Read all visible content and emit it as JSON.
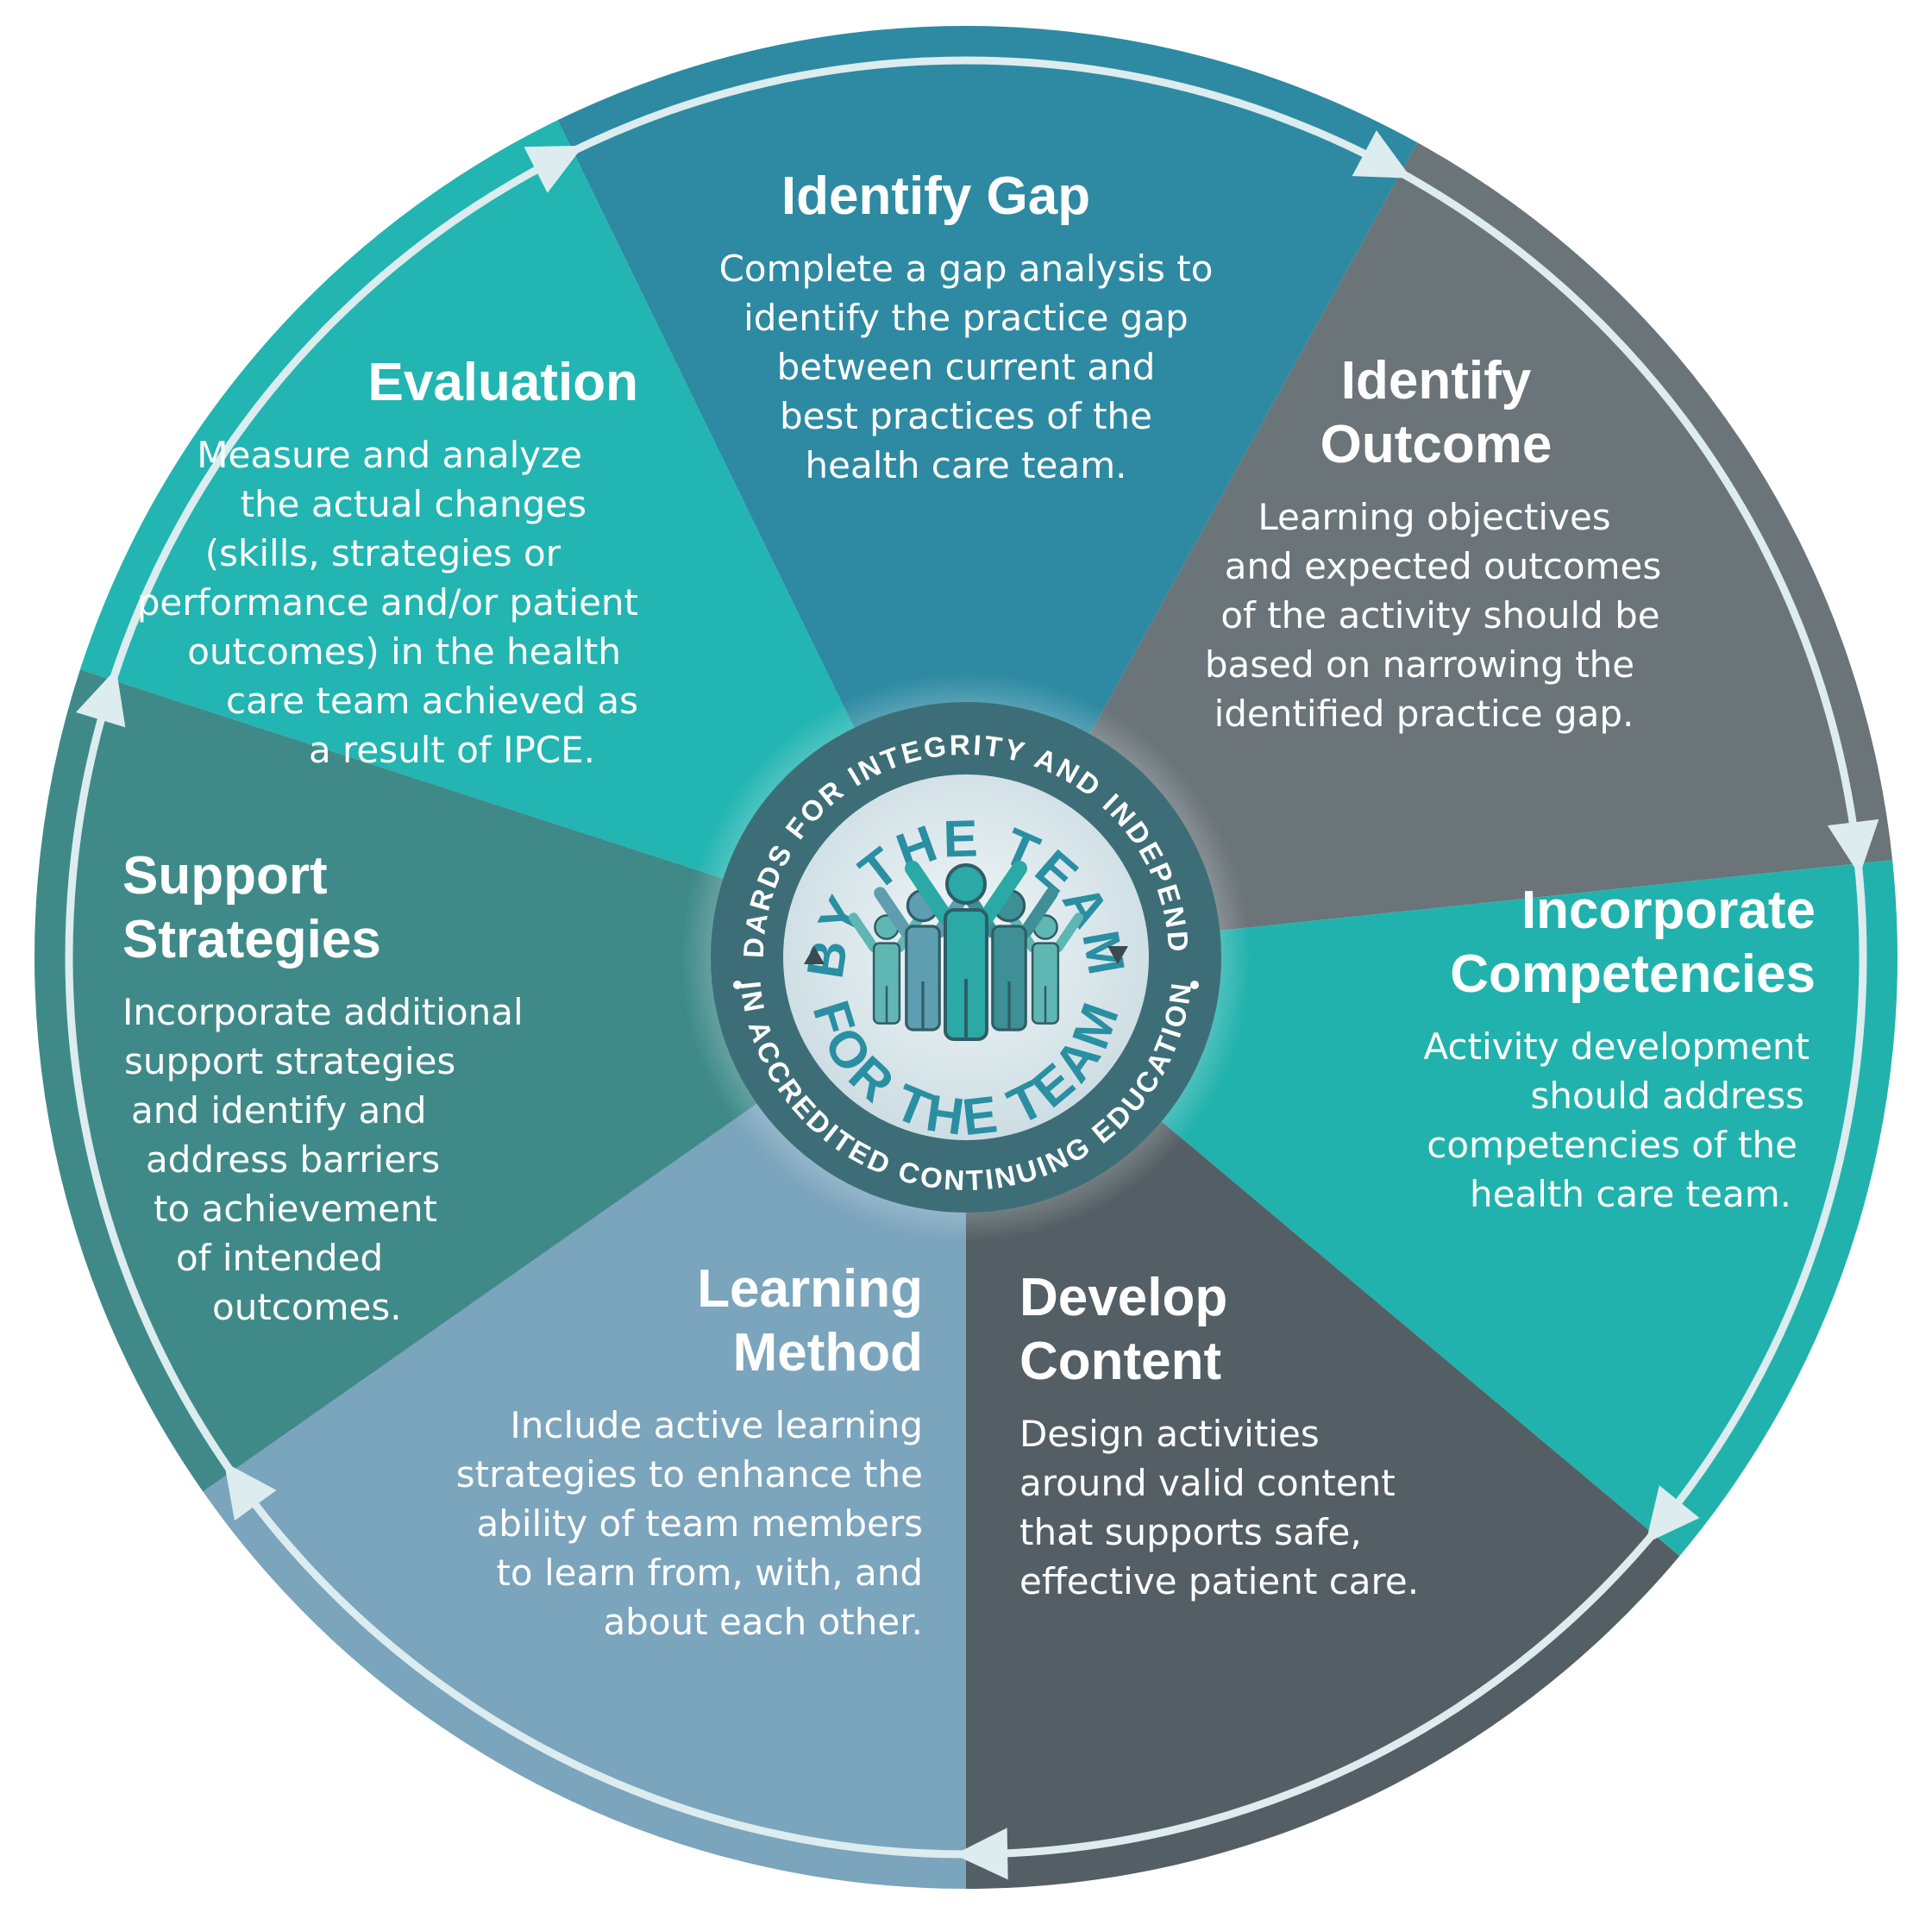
{
  "center_badge": {
    "outer_ring_top": "STANDARDS FOR INTEGRITY AND INDEPENDENCE",
    "outer_ring_bottom": "IN ACCREDITED CONTINUING EDUCATION",
    "inner_top": "BY THE TEAM",
    "inner_bottom": "FOR THE TEAM",
    "colors": {
      "ring": "#3d6e78",
      "disc": "#d9e6ea",
      "people": [
        "#2aa9a6",
        "#5f9db0",
        "#3e8f96"
      ],
      "text": "#2a8fa2"
    }
  },
  "segments": [
    {
      "id": "identify-gap",
      "color": "#2d8aa2",
      "title": [
        "Identify Gap"
      ],
      "body": [
        "Complete a gap analysis to",
        "identify the practice gap",
        "between current and",
        "best practices of the",
        "health care team."
      ]
    },
    {
      "id": "identify-outcome",
      "color": "#6a7479",
      "title": [
        "Identify",
        "Outcome"
      ],
      "body": [
        "Learning objectives",
        "and expected outcomes",
        "of the activity should be",
        "based on narrowing the",
        "identified practice gap."
      ]
    },
    {
      "id": "incorporate-competencies",
      "color": "#22b2ad",
      "title": [
        "Incorporate",
        "Competencies"
      ],
      "body": [
        "Activity development",
        "should address",
        "competencies of the",
        "health care team."
      ]
    },
    {
      "id": "develop-content",
      "color": "#535f64",
      "title": [
        "Develop",
        "Content"
      ],
      "body": [
        "Design activities",
        "around valid content",
        "that supports safe,",
        "effective patient care."
      ]
    },
    {
      "id": "learning-method",
      "color": "#7ba4bd",
      "title": [
        "Learning",
        "Method"
      ],
      "body": [
        "Include active learning",
        "strategies to enhance the",
        "ability of team members",
        "to learn from, with, and",
        "about each other."
      ]
    },
    {
      "id": "support-strategies",
      "color": "#3f8a89",
      "title": [
        "Support",
        "Strategies"
      ],
      "body": [
        "Incorporate additional",
        "support strategies",
        "and identify and",
        "address barriers",
        "to achievement",
        "of intended",
        "outcomes."
      ]
    },
    {
      "id": "evaluation",
      "color": "#22b5b2",
      "title": [
        "Evaluation"
      ],
      "body": [
        "Measure and analyze",
        "the actual changes",
        "(skills, strategies or",
        "performance and/or patient",
        "outcomes) in the health",
        "care team achieved as",
        "a result of IPCE."
      ]
    }
  ]
}
